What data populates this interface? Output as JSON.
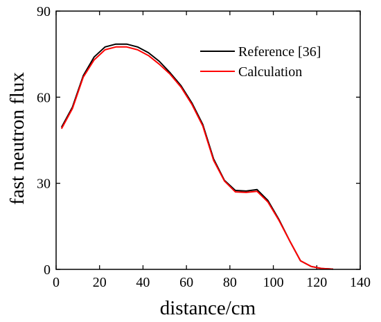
{
  "chart_data": {
    "type": "line",
    "title": "",
    "xlabel": "distance/cm",
    "ylabel": "fast neutron flux",
    "xlim": [
      0,
      140
    ],
    "ylim": [
      0,
      90
    ],
    "xticks": [
      0,
      20,
      40,
      60,
      80,
      100,
      120,
      140
    ],
    "yticks": [
      0,
      30,
      60,
      90
    ],
    "grid": false,
    "legend_position": "top-right",
    "series": [
      {
        "name": "Reference [36]",
        "color": "#000000",
        "x": [
          2.5,
          7.5,
          12.5,
          17.5,
          22.5,
          27.5,
          32.5,
          37.5,
          42.5,
          47.5,
          52.5,
          57.5,
          62.5,
          67.5,
          72.5,
          77.5,
          82.5,
          87.5,
          92.5,
          97.5,
          102.5,
          107.5,
          112.5,
          117.5,
          122.5,
          127.5
        ],
        "y": [
          49.5,
          56.5,
          67.5,
          74.0,
          77.5,
          78.5,
          78.5,
          77.5,
          75.5,
          72.5,
          68.5,
          64.0,
          58.0,
          50.5,
          38.5,
          31.0,
          27.5,
          27.3,
          27.8,
          24.0,
          17.5,
          10.0,
          3.0,
          1.0,
          0.3,
          0.1
        ]
      },
      {
        "name": "Calculation",
        "color": "#ff0000",
        "x": [
          2.5,
          7.5,
          12.5,
          17.5,
          22.5,
          27.5,
          32.5,
          37.5,
          42.5,
          47.5,
          52.5,
          57.5,
          62.5,
          67.5,
          72.5,
          77.5,
          82.5,
          87.5,
          92.5,
          97.5,
          102.5,
          107.5,
          112.5,
          117.5,
          122.5,
          127.5
        ],
        "y": [
          49.0,
          56.0,
          67.0,
          73.0,
          76.5,
          77.5,
          77.5,
          76.5,
          74.5,
          71.5,
          68.0,
          63.5,
          57.5,
          50.0,
          38.0,
          30.8,
          27.0,
          26.8,
          27.2,
          23.5,
          17.2,
          10.0,
          3.0,
          1.0,
          0.3,
          0.1
        ]
      }
    ]
  }
}
